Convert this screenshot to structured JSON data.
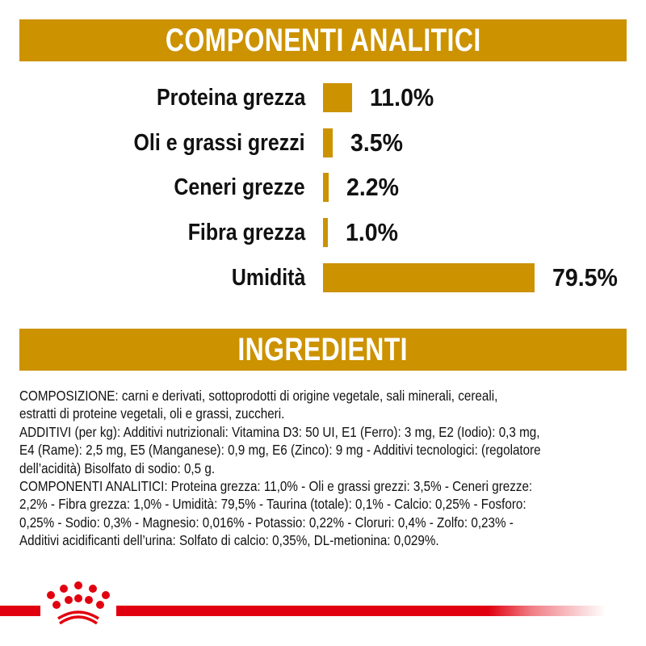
{
  "sections": {
    "analytics_title": "COMPONENTI ANALITICI",
    "ingredients_title": "INGREDIENTI"
  },
  "colors": {
    "banner": "#CC9200",
    "bar": "#CC9200",
    "brand_red": "#E1000F",
    "text": "#111111"
  },
  "chart_data": {
    "type": "bar",
    "orientation": "horizontal",
    "title": "COMPONENTI ANALITICI",
    "categories": [
      "Proteina grezza",
      "Oli e grassi grezzi",
      "Ceneri grezze",
      "Fibra grezza",
      "Umidità"
    ],
    "values": [
      11.0,
      3.5,
      2.2,
      1.0,
      79.5
    ],
    "value_labels": [
      "11.0%",
      "3.5%",
      "2.2%",
      "1.0%",
      "79.5%"
    ],
    "unit": "%",
    "xlabel": "",
    "ylabel": "",
    "xlim": [
      0,
      100
    ],
    "grid": false,
    "legend": "none"
  },
  "rows": [
    {
      "label": "Proteina grezza",
      "value": "11.0%"
    },
    {
      "label": "Oli e grassi grezzi",
      "value": "3.5%"
    },
    {
      "label": "Ceneri grezze",
      "value": "2.2%"
    },
    {
      "label": "Fibra grezza",
      "value": "1.0%"
    },
    {
      "label": "Umidità",
      "value": "79.5%"
    }
  ],
  "ingredients": {
    "lines": [
      "COMPOSIZIONE: carni e derivati, sottoprodotti di origine vegetale, sali minerali, cereali,",
      "estratti di proteine vegetali, oli e grassi, zuccheri.",
      "ADDITIVI (per kg): Additivi nutrizionali: Vitamina D3: 50 UI, E1 (Ferro): 3 mg, E2 (Iodio): 0,3 mg,",
      "E4 (Rame): 2,5 mg, E5 (Manganese): 0,9 mg, E6 (Zinco): 9 mg - Additivi tecnologici: (regolatore",
      "dell’acidità) Bisolfato di sodio: 0,5 g.",
      "COMPONENTI ANALITICI: Proteina grezza: 11,0% - Oli e grassi grezzi: 3,5% - Ceneri grezze:",
      "2,2% - Fibra grezza: 1,0% - Umidità: 79,5% - Taurina (totale): 0,1% - Calcio: 0,25% - Fosforo:",
      "0,25% - Sodio: 0,3% - Magnesio: 0,016% - Potassio: 0,22% - Cloruri: 0,4% - Zolfo: 0,23% -",
      "Additivi acidificanti dell’urina: Solfato di calcio: 0,35%, DL-metionina: 0,029%."
    ]
  },
  "footer": {
    "logo_icon": "royal-crown-icon"
  }
}
